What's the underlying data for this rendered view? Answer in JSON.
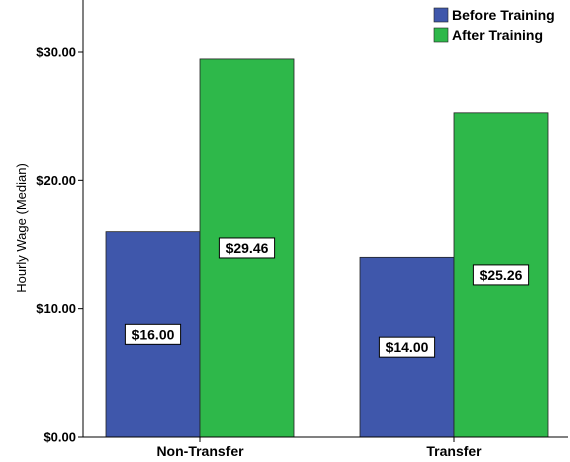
{
  "chart_data": {
    "type": "bar",
    "title": "",
    "xlabel": "",
    "ylabel": "Hourly Wage (Median)",
    "categories": [
      "Non-Transfer",
      "Transfer"
    ],
    "series": [
      {
        "name": "Before Training",
        "values": [
          16.0,
          14.0
        ],
        "labels": [
          "$16.00",
          "$14.00"
        ],
        "color": "#3f57ab"
      },
      {
        "name": "After Training",
        "values": [
          29.46,
          25.26
        ],
        "labels": [
          "$29.46",
          "$25.26"
        ],
        "color": "#2eb84a"
      }
    ],
    "ylim": [
      0,
      33
    ],
    "yticks": [
      0,
      10,
      20,
      30
    ],
    "ytick_labels": [
      "$0.00",
      "$10.00",
      "$20.00",
      "$30.00"
    ],
    "legend_position": "top-right",
    "grid": false
  }
}
